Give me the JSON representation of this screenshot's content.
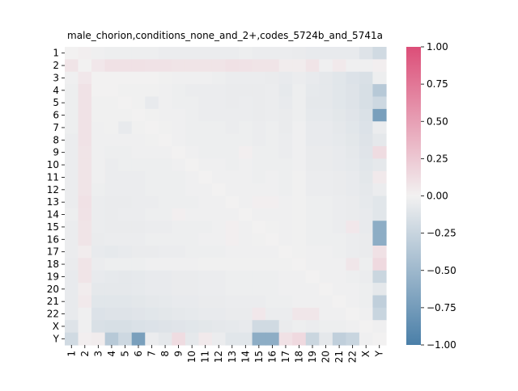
{
  "chart_data": {
    "type": "heatmap",
    "title": "male_chorion,conditions_none_and_2+,codes_5724b_and_5741a",
    "xlabel": "",
    "ylabel": "",
    "rows": [
      "1",
      "2",
      "3",
      "4",
      "5",
      "6",
      "7",
      "8",
      "9",
      "10",
      "11",
      "12",
      "13",
      "14",
      "15",
      "16",
      "17",
      "18",
      "19",
      "20",
      "21",
      "22",
      "X",
      "Y"
    ],
    "cols": [
      "1",
      "2",
      "3",
      "4",
      "5",
      "6",
      "7",
      "8",
      "9",
      "10",
      "11",
      "12",
      "13",
      "14",
      "15",
      "16",
      "17",
      "18",
      "19",
      "20",
      "21",
      "22",
      "X",
      "Y"
    ],
    "values": [
      [
        0.0,
        0.02,
        -0.02,
        -0.03,
        -0.03,
        -0.03,
        -0.03,
        -0.04,
        -0.04,
        -0.04,
        -0.04,
        -0.04,
        -0.04,
        -0.03,
        -0.04,
        -0.04,
        -0.04,
        -0.05,
        -0.06,
        -0.06,
        -0.06,
        -0.06,
        -0.12,
        -0.2
      ],
      [
        0.08,
        0.0,
        0.06,
        0.1,
        0.1,
        0.1,
        0.09,
        0.09,
        0.08,
        0.08,
        0.08,
        0.08,
        0.1,
        0.09,
        0.08,
        0.08,
        0.03,
        0.03,
        0.08,
        -0.02,
        0.05,
        -0.02,
        -0.02,
        0.02
      ],
      [
        -0.02,
        0.06,
        0.0,
        0.0,
        0.0,
        0.0,
        0.0,
        -0.01,
        -0.02,
        -0.02,
        -0.02,
        -0.03,
        -0.04,
        -0.04,
        -0.04,
        -0.05,
        -0.06,
        -0.04,
        -0.06,
        -0.08,
        -0.1,
        -0.13,
        -0.15,
        -0.03
      ],
      [
        -0.03,
        0.09,
        0.0,
        0.0,
        -0.01,
        -0.01,
        -0.01,
        -0.02,
        -0.03,
        -0.04,
        -0.04,
        -0.04,
        -0.05,
        -0.05,
        -0.05,
        -0.04,
        -0.07,
        -0.03,
        -0.07,
        -0.08,
        -0.1,
        -0.12,
        -0.16,
        -0.35
      ],
      [
        -0.03,
        0.09,
        -0.01,
        -0.01,
        0.0,
        -0.01,
        -0.06,
        -0.02,
        -0.03,
        -0.03,
        -0.04,
        -0.04,
        -0.05,
        -0.04,
        -0.05,
        -0.04,
        -0.06,
        -0.03,
        -0.08,
        -0.08,
        -0.1,
        -0.12,
        -0.16,
        -0.22
      ],
      [
        -0.03,
        0.09,
        -0.01,
        -0.01,
        -0.01,
        0.0,
        -0.01,
        -0.02,
        -0.02,
        -0.03,
        -0.04,
        -0.04,
        -0.04,
        -0.04,
        -0.05,
        -0.04,
        -0.05,
        -0.03,
        -0.07,
        -0.07,
        -0.09,
        -0.11,
        -0.14,
        -0.72
      ],
      [
        -0.03,
        0.09,
        -0.02,
        -0.01,
        -0.06,
        -0.01,
        0.0,
        -0.01,
        -0.02,
        -0.03,
        -0.03,
        -0.03,
        -0.04,
        -0.03,
        -0.04,
        -0.03,
        -0.05,
        -0.02,
        -0.06,
        -0.06,
        -0.08,
        -0.1,
        -0.13,
        -0.04
      ],
      [
        -0.04,
        0.09,
        -0.02,
        -0.02,
        -0.02,
        -0.02,
        -0.01,
        0.0,
        -0.02,
        -0.03,
        -0.03,
        -0.03,
        -0.03,
        -0.03,
        -0.04,
        -0.03,
        -0.04,
        -0.02,
        -0.06,
        -0.06,
        -0.07,
        -0.09,
        -0.12,
        -0.08
      ],
      [
        -0.04,
        0.08,
        -0.02,
        -0.03,
        -0.03,
        -0.02,
        -0.02,
        -0.02,
        0.0,
        -0.02,
        -0.03,
        -0.03,
        -0.03,
        0.02,
        -0.03,
        -0.03,
        -0.04,
        -0.02,
        -0.05,
        -0.05,
        -0.06,
        -0.08,
        -0.11,
        0.13
      ],
      [
        -0.04,
        0.08,
        -0.02,
        -0.04,
        -0.03,
        -0.03,
        -0.03,
        -0.03,
        -0.02,
        0.0,
        -0.02,
        -0.02,
        -0.03,
        -0.02,
        -0.03,
        -0.03,
        -0.03,
        -0.02,
        -0.05,
        -0.05,
        -0.06,
        -0.07,
        -0.1,
        -0.08
      ],
      [
        -0.04,
        0.08,
        -0.02,
        -0.04,
        -0.04,
        -0.04,
        -0.03,
        -0.03,
        -0.03,
        -0.02,
        0.0,
        -0.02,
        -0.02,
        -0.02,
        -0.03,
        -0.02,
        -0.03,
        -0.01,
        -0.04,
        -0.04,
        -0.05,
        -0.06,
        -0.09,
        0.05
      ],
      [
        -0.04,
        0.08,
        -0.03,
        -0.04,
        -0.04,
        -0.04,
        -0.03,
        -0.03,
        -0.03,
        -0.02,
        -0.02,
        0.0,
        -0.02,
        -0.02,
        -0.02,
        -0.02,
        -0.03,
        -0.01,
        -0.04,
        -0.04,
        -0.05,
        -0.06,
        -0.08,
        -0.04
      ],
      [
        -0.04,
        0.1,
        -0.04,
        -0.05,
        -0.05,
        -0.04,
        -0.04,
        -0.03,
        -0.03,
        -0.03,
        -0.02,
        -0.02,
        0.0,
        -0.02,
        0.02,
        0.02,
        -0.02,
        -0.01,
        -0.03,
        -0.03,
        -0.04,
        -0.05,
        -0.07,
        -0.1
      ],
      [
        -0.03,
        0.09,
        -0.04,
        -0.05,
        -0.04,
        -0.04,
        -0.03,
        -0.03,
        0.02,
        -0.02,
        -0.02,
        -0.02,
        -0.02,
        0.0,
        -0.02,
        -0.02,
        -0.02,
        -0.01,
        -0.03,
        -0.03,
        -0.04,
        -0.05,
        -0.06,
        -0.1
      ],
      [
        -0.04,
        0.08,
        -0.04,
        -0.05,
        -0.05,
        -0.05,
        -0.04,
        -0.04,
        -0.03,
        -0.03,
        -0.03,
        -0.02,
        0.02,
        -0.02,
        0.0,
        -0.01,
        -0.02,
        -0.01,
        -0.03,
        -0.03,
        -0.04,
        0.06,
        -0.06,
        -0.6
      ],
      [
        -0.04,
        0.08,
        -0.05,
        -0.04,
        -0.04,
        -0.04,
        -0.03,
        -0.03,
        -0.03,
        -0.03,
        -0.02,
        -0.02,
        0.02,
        -0.02,
        -0.01,
        0.0,
        -0.02,
        -0.01,
        -0.03,
        -0.03,
        -0.03,
        -0.04,
        -0.05,
        -0.6
      ],
      [
        -0.04,
        0.03,
        -0.06,
        -0.07,
        -0.06,
        -0.05,
        -0.05,
        -0.04,
        -0.04,
        -0.03,
        -0.03,
        -0.03,
        -0.02,
        -0.02,
        -0.02,
        -0.02,
        0.0,
        -0.01,
        -0.02,
        -0.02,
        -0.03,
        -0.04,
        -0.05,
        0.1
      ],
      [
        -0.05,
        0.08,
        -0.04,
        -0.03,
        -0.03,
        -0.03,
        -0.02,
        -0.02,
        -0.02,
        -0.02,
        -0.01,
        -0.01,
        -0.01,
        -0.01,
        -0.01,
        -0.01,
        -0.01,
        0.0,
        -0.02,
        -0.02,
        -0.02,
        0.07,
        -0.03,
        0.15
      ],
      [
        -0.06,
        0.08,
        -0.06,
        -0.07,
        -0.08,
        -0.07,
        -0.06,
        -0.06,
        -0.05,
        -0.05,
        -0.04,
        -0.04,
        -0.03,
        -0.03,
        -0.03,
        -0.03,
        -0.02,
        -0.02,
        0.0,
        -0.02,
        -0.02,
        -0.03,
        -0.04,
        -0.24
      ],
      [
        -0.06,
        0.03,
        -0.08,
        -0.08,
        -0.08,
        -0.07,
        -0.06,
        -0.06,
        -0.05,
        -0.05,
        -0.04,
        -0.04,
        -0.03,
        -0.03,
        -0.03,
        -0.03,
        -0.02,
        -0.02,
        -0.02,
        0.0,
        -0.02,
        -0.02,
        -0.03,
        -0.08
      ],
      [
        -0.06,
        0.05,
        -0.1,
        -0.1,
        -0.1,
        -0.09,
        -0.08,
        -0.07,
        -0.06,
        -0.06,
        -0.05,
        -0.05,
        -0.04,
        -0.04,
        -0.04,
        -0.03,
        -0.03,
        -0.02,
        -0.02,
        -0.02,
        0.0,
        -0.02,
        -0.03,
        -0.3
      ],
      [
        -0.06,
        -0.02,
        -0.13,
        -0.12,
        -0.12,
        -0.11,
        -0.1,
        -0.09,
        -0.08,
        -0.07,
        -0.06,
        -0.06,
        -0.05,
        -0.05,
        0.06,
        -0.04,
        -0.04,
        0.07,
        0.07,
        -0.02,
        -0.02,
        0.0,
        -0.02,
        -0.25
      ],
      [
        -0.12,
        -0.02,
        -0.15,
        -0.16,
        -0.16,
        -0.14,
        -0.13,
        -0.12,
        -0.11,
        -0.1,
        -0.09,
        -0.08,
        -0.07,
        -0.06,
        -0.2,
        -0.2,
        -0.05,
        -0.03,
        -0.04,
        -0.03,
        -0.03,
        -0.02,
        0.0,
        -0.02
      ],
      [
        -0.2,
        0.02,
        0.03,
        -0.35,
        -0.22,
        -0.72,
        -0.04,
        -0.08,
        0.13,
        -0.08,
        0.05,
        -0.04,
        -0.1,
        -0.1,
        -0.6,
        -0.6,
        0.1,
        0.15,
        -0.24,
        -0.08,
        -0.3,
        -0.25,
        -0.02,
        0.0
      ]
    ],
    "zlim": [
      -1,
      1
    ],
    "colorbar": {
      "ticks": [
        1.0,
        0.75,
        0.5,
        0.25,
        0.0,
        -0.25,
        -0.5,
        -0.75,
        -1.0
      ],
      "tick_labels": [
        "1.00",
        "0.75",
        "0.50",
        "0.25",
        "0.00",
        "−0.25",
        "−0.50",
        "−0.75",
        "−1.00"
      ]
    },
    "colors": {
      "negative": "#4a7fa8",
      "neutral": "#f2f1f1",
      "positive": "#dc4e78"
    },
    "grid": false,
    "legend": "colorbar-right"
  }
}
